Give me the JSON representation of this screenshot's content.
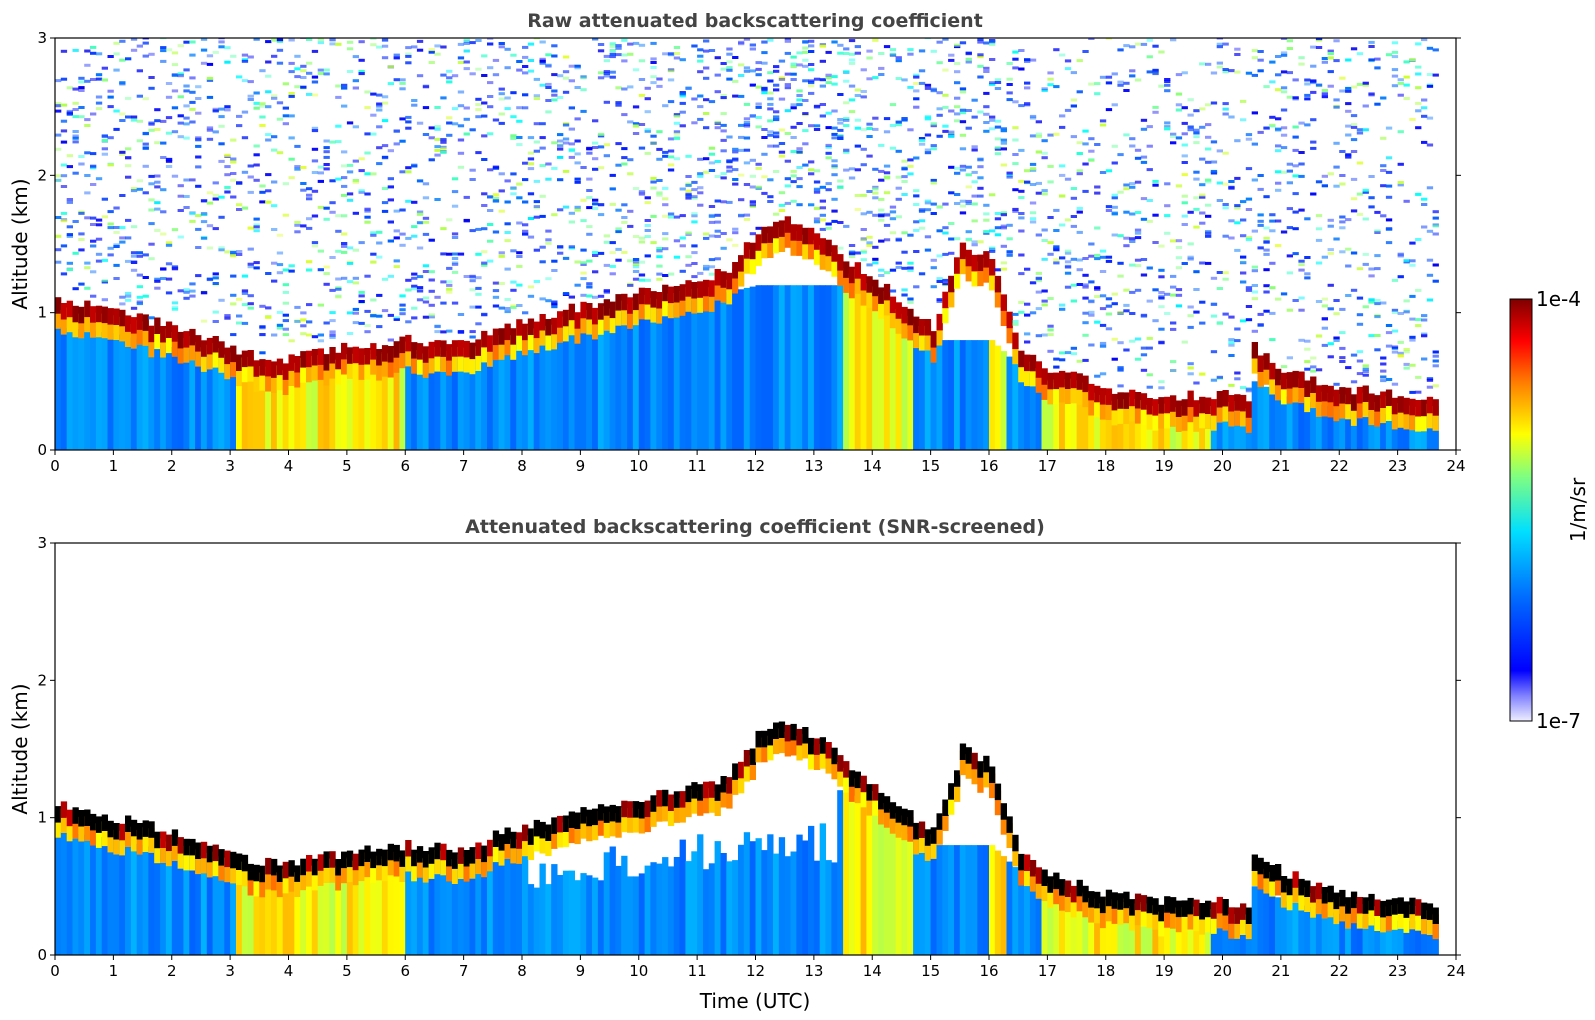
{
  "colors": {
    "colormap": [
      "#ffffff",
      "#00008f",
      "#0000ff",
      "#0080ff",
      "#00ffff",
      "#80ff80",
      "#ffff00",
      "#ff8000",
      "#ff0000",
      "#800000"
    ],
    "black_core": "#000000",
    "title_color": "#444444"
  },
  "colorbar": {
    "max_label": "1e-4",
    "min_label": "1e-7",
    "unit_label": "1/m/sr"
  },
  "chart_data": [
    {
      "type": "heatmap",
      "title": "Raw attenuated backscattering coefficient",
      "xlabel": "",
      "ylabel": "Altitude (km)",
      "xlim": [
        0,
        24
      ],
      "ylim": [
        0,
        3
      ],
      "x_ticks": [
        "0",
        "1",
        "2",
        "3",
        "4",
        "5",
        "6",
        "7",
        "8",
        "9",
        "10",
        "11",
        "12",
        "13",
        "14",
        "15",
        "16",
        "17",
        "18",
        "19",
        "20",
        "21",
        "22",
        "23",
        "24"
      ],
      "y_ticks": [
        "0",
        "1",
        "2",
        "3"
      ],
      "color_scale": "log",
      "color_range": [
        1e-07,
        0.0001
      ],
      "data_end_time": 23.7,
      "cloud_layer": {
        "time": [
          0,
          1,
          2,
          3,
          3.5,
          4,
          5,
          6,
          7,
          7.5,
          8.5,
          9.5,
          10.5,
          11,
          11.5,
          12,
          12.5,
          13,
          13.5,
          14,
          14.5,
          15,
          15.5,
          16,
          16.5,
          17,
          18,
          19,
          20,
          20.4,
          20.5,
          21,
          22,
          23,
          23.7
        ],
        "altitude_km": [
          1.05,
          0.95,
          0.85,
          0.7,
          0.62,
          0.62,
          0.7,
          0.75,
          0.72,
          0.82,
          0.95,
          1.05,
          1.15,
          1.2,
          1.25,
          1.55,
          1.65,
          1.55,
          1.35,
          1.2,
          1.0,
          0.85,
          1.45,
          1.35,
          0.7,
          0.55,
          0.4,
          0.35,
          0.35,
          0.3,
          0.7,
          0.55,
          0.4,
          0.35,
          0.3
        ]
      },
      "aerosol_boundary_layer_km": [
        0.9,
        0.85,
        0.75,
        0.7,
        0.7,
        0.7,
        0.7,
        0.7,
        0.7,
        0.8,
        0.9,
        1.0,
        1.05,
        1.1,
        1.15,
        1.2,
        1.2,
        1.2,
        1.2,
        1.1,
        0.9,
        0.8,
        0.8,
        0.8,
        0.6,
        0.5,
        0.4,
        0.35,
        0.35,
        0.3,
        0.5,
        0.4,
        0.3,
        0.25,
        0.25
      ],
      "precipitation_columns_utc": [
        [
          3.0,
          5.9
        ],
        [
          13.4,
          14.6
        ],
        [
          15.9,
          16.2
        ],
        [
          16.8,
          19.7
        ]
      ]
    },
    {
      "type": "heatmap",
      "title": "Attenuated backscattering coefficient (SNR-screened)",
      "xlabel": "Time (UTC)",
      "ylabel": "Altitude (km)",
      "xlim": [
        0,
        24
      ],
      "ylim": [
        0,
        3
      ],
      "x_ticks": [
        "0",
        "1",
        "2",
        "3",
        "4",
        "5",
        "6",
        "7",
        "8",
        "9",
        "10",
        "11",
        "12",
        "13",
        "14",
        "15",
        "16",
        "17",
        "18",
        "19",
        "20",
        "21",
        "22",
        "23",
        "24"
      ],
      "y_ticks": [
        "0",
        "1",
        "2",
        "3"
      ],
      "color_scale": "log",
      "color_range": [
        1e-07,
        0.0001
      ],
      "data_end_time": 23.7,
      "screened_gap_utc": [
        [
          8.0,
          13.3
        ]
      ]
    }
  ]
}
